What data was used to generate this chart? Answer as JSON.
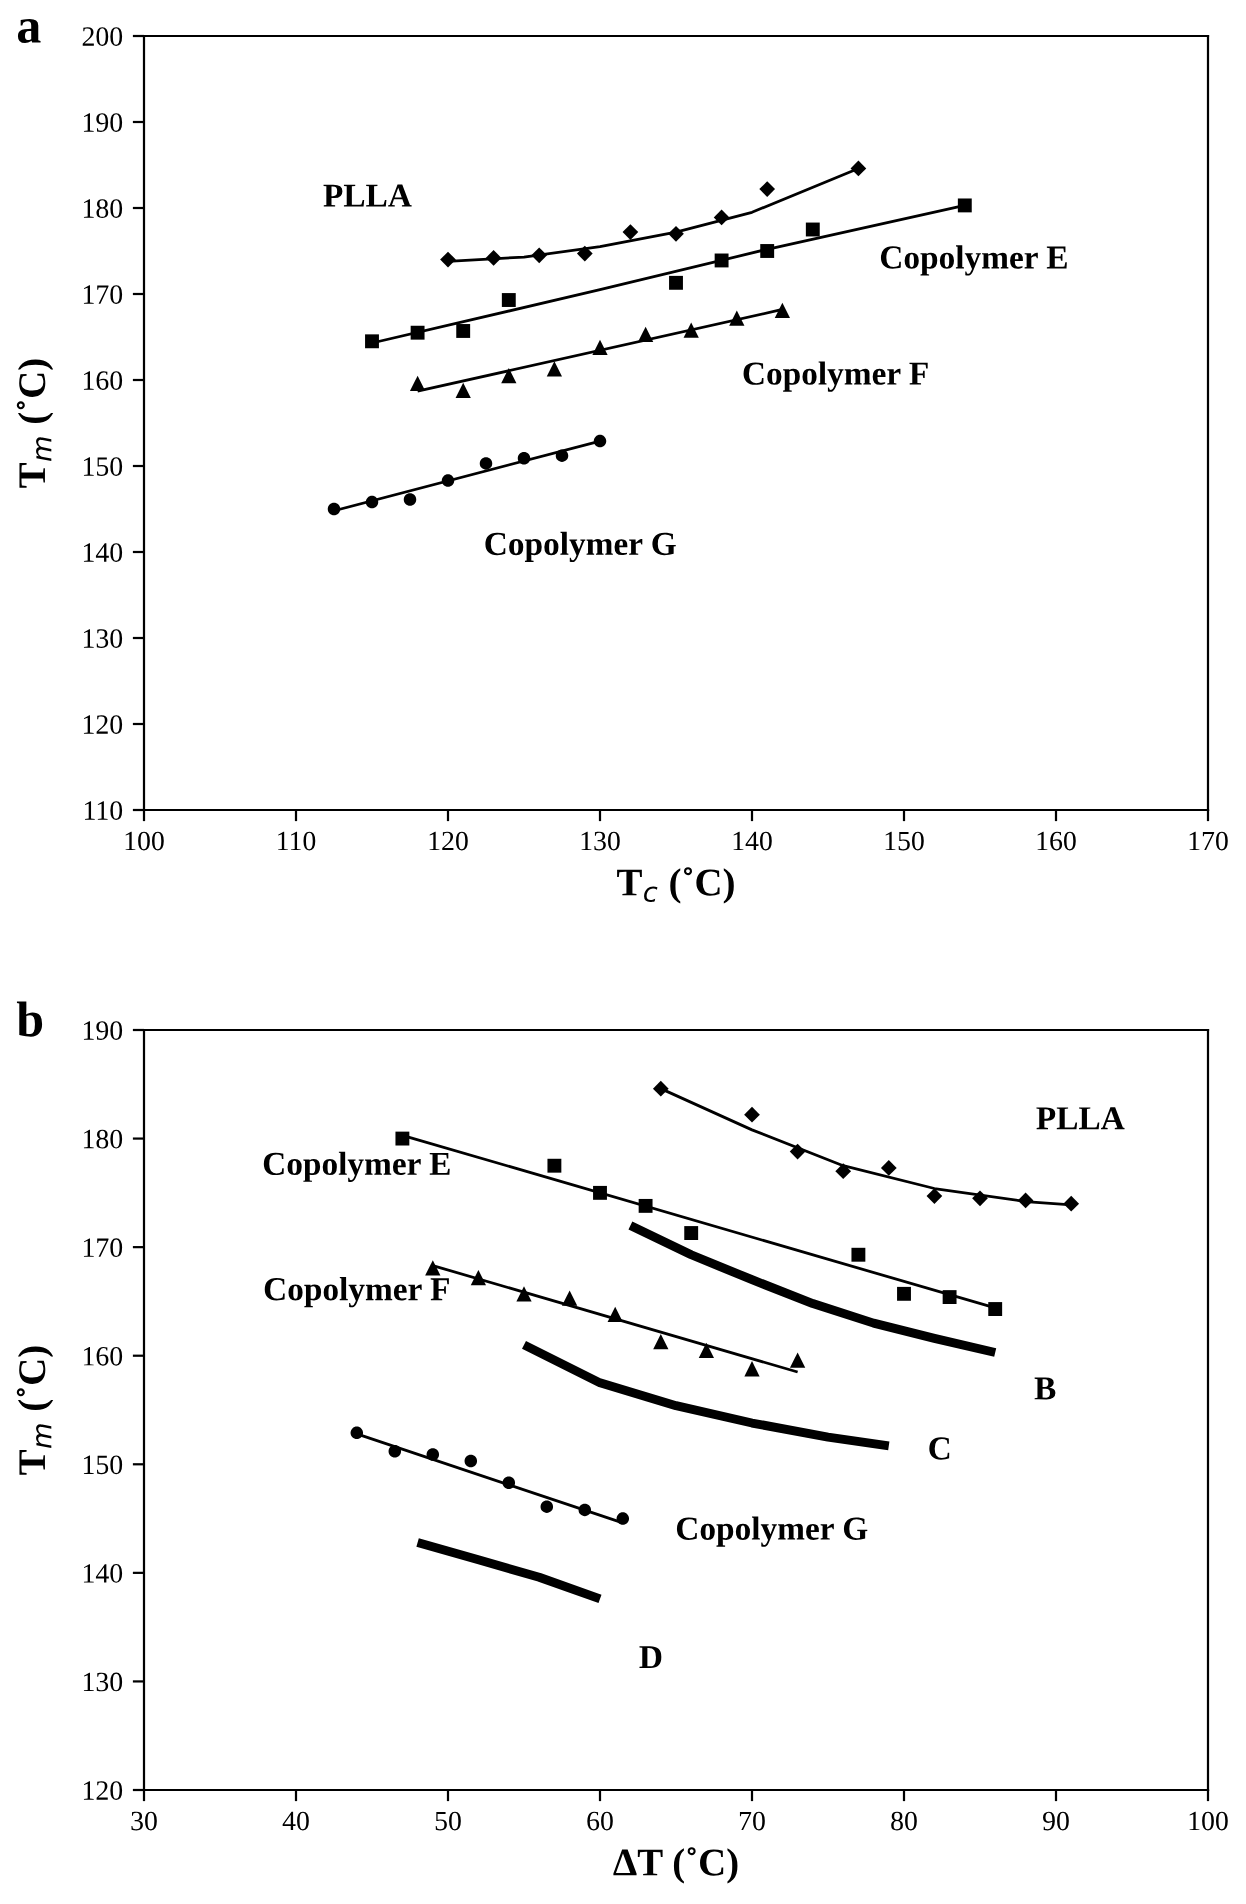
{
  "chart_data": [
    {
      "type": "scatter",
      "title": "a",
      "xlabel": "T$_{c}$ (˚C)",
      "ylabel": "T$_{m}$ (˚C)",
      "xlim": [
        100,
        170
      ],
      "ylim": [
        110,
        200
      ],
      "xticks": [
        100,
        110,
        120,
        130,
        140,
        150,
        160,
        170
      ],
      "yticks": [
        110,
        120,
        130,
        140,
        150,
        160,
        170,
        180,
        190,
        200
      ],
      "grid": false,
      "legend": false,
      "series": [
        {
          "marker": "diamond",
          "color": "#000000",
          "x": [
            120,
            123,
            126,
            129,
            132,
            135,
            138,
            141,
            147
          ],
          "values": [
            174,
            174.2,
            174.5,
            174.7,
            177.2,
            177,
            178.9,
            182.2,
            184.6
          ]
        },
        {
          "type": "line",
          "color": "#000000",
          "x": [
            120,
            125,
            130,
            135,
            140,
            147
          ],
          "values": [
            173.8,
            174.3,
            175.5,
            177.2,
            179.5,
            184.6
          ]
        },
        {
          "marker": "square",
          "color": "#000000",
          "x": [
            115,
            118,
            121,
            124,
            135,
            138,
            141,
            144,
            154
          ],
          "values": [
            164.5,
            165.5,
            165.7,
            169.3,
            171.3,
            173.9,
            175,
            177.5,
            180.3
          ]
        },
        {
          "type": "line",
          "color": "#000000",
          "x": [
            115,
            130,
            141,
            154
          ],
          "values": [
            164.3,
            170.5,
            175.2,
            180.3
          ]
        },
        {
          "marker": "triangle",
          "color": "#000000",
          "x": [
            118,
            121,
            124,
            127,
            130,
            133,
            136,
            139,
            142
          ],
          "values": [
            159.6,
            158.8,
            160.5,
            161.3,
            163.8,
            165.3,
            165.8,
            167.2,
            168.1
          ]
        },
        {
          "type": "line",
          "color": "#000000",
          "x": [
            118,
            142
          ],
          "values": [
            158.7,
            168.2
          ]
        },
        {
          "marker": "circle",
          "color": "#000000",
          "x": [
            112.5,
            115,
            117.5,
            120,
            122.5,
            125,
            127.5,
            130
          ],
          "values": [
            145,
            145.8,
            146.1,
            148.3,
            150.3,
            150.9,
            151.2,
            152.9
          ]
        },
        {
          "type": "line",
          "color": "#000000",
          "x": [
            112.5,
            130
          ],
          "values": [
            144.8,
            152.9
          ]
        }
      ],
      "annotations": [
        "PLLA",
        "Copolymer E",
        "Copolymer F",
        "Copolymer G"
      ]
    },
    {
      "type": "scatter",
      "title": "b",
      "xlabel": "ΔT (˚C)",
      "ylabel": "T$_{m}$ (˚C)",
      "xlim": [
        30,
        100
      ],
      "ylim": [
        120,
        190
      ],
      "xticks": [
        30,
        40,
        50,
        60,
        70,
        80,
        90,
        100
      ],
      "yticks": [
        120,
        130,
        140,
        150,
        160,
        170,
        180,
        190
      ],
      "grid": false,
      "legend": false,
      "series": [
        {
          "marker": "diamond",
          "color": "#000000",
          "x": [
            64,
            70,
            73,
            76,
            79,
            82,
            85,
            88,
            91
          ],
          "values": [
            184.6,
            182.2,
            178.8,
            177,
            177.3,
            174.7,
            174.5,
            174.3,
            174
          ]
        },
        {
          "type": "line",
          "color": "#000000",
          "x": [
            64,
            70,
            76,
            82,
            88,
            91
          ],
          "values": [
            184.6,
            180.8,
            177.5,
            175.4,
            174.2,
            173.9
          ]
        },
        {
          "marker": "square",
          "color": "#000000",
          "x": [
            47,
            57,
            60,
            63,
            66,
            77,
            80,
            83,
            86
          ],
          "values": [
            180,
            177.5,
            175,
            173.8,
            171.3,
            169.3,
            165.7,
            165.4,
            164.3
          ]
        },
        {
          "type": "line",
          "color": "#000000",
          "x": [
            47,
            86
          ],
          "values": [
            180.3,
            164.4
          ]
        },
        {
          "marker": "triangle",
          "color": "#000000",
          "x": [
            49,
            52,
            55,
            58,
            61,
            64,
            67,
            70,
            73
          ],
          "values": [
            168.1,
            167.2,
            165.7,
            165.3,
            163.8,
            161.3,
            160.5,
            158.8,
            159.6
          ]
        },
        {
          "type": "line",
          "color": "#000000",
          "x": [
            49,
            73
          ],
          "values": [
            168.3,
            158.5
          ]
        },
        {
          "marker": "circle",
          "color": "#000000",
          "x": [
            44,
            46.5,
            49,
            51.5,
            54,
            56.5,
            59,
            61.5
          ],
          "values": [
            152.9,
            151.2,
            150.9,
            150.3,
            148.3,
            146.1,
            145.8,
            145
          ]
        },
        {
          "type": "line",
          "color": "#000000",
          "x": [
            44,
            61.5
          ],
          "values": [
            152.8,
            144.6
          ]
        },
        {
          "type": "line",
          "name": "B",
          "color": "#000000",
          "x": [
            62,
            66,
            70,
            74,
            78,
            82,
            86
          ],
          "values": [
            172,
            169.3,
            167,
            164.8,
            163,
            161.6,
            160.3
          ]
        },
        {
          "type": "line",
          "name": "C",
          "color": "#000000",
          "x": [
            55,
            60,
            65,
            70,
            75,
            79
          ],
          "values": [
            161,
            157.5,
            155.4,
            153.8,
            152.5,
            151.7
          ]
        },
        {
          "type": "line",
          "name": "D",
          "color": "#000000",
          "x": [
            48,
            52,
            56,
            60
          ],
          "values": [
            142.8,
            141.2,
            139.6,
            137.6
          ]
        }
      ],
      "annotations": [
        "PLLA",
        "Copolymer E",
        "Copolymer F",
        "Copolymer G"
      ]
    }
  ]
}
